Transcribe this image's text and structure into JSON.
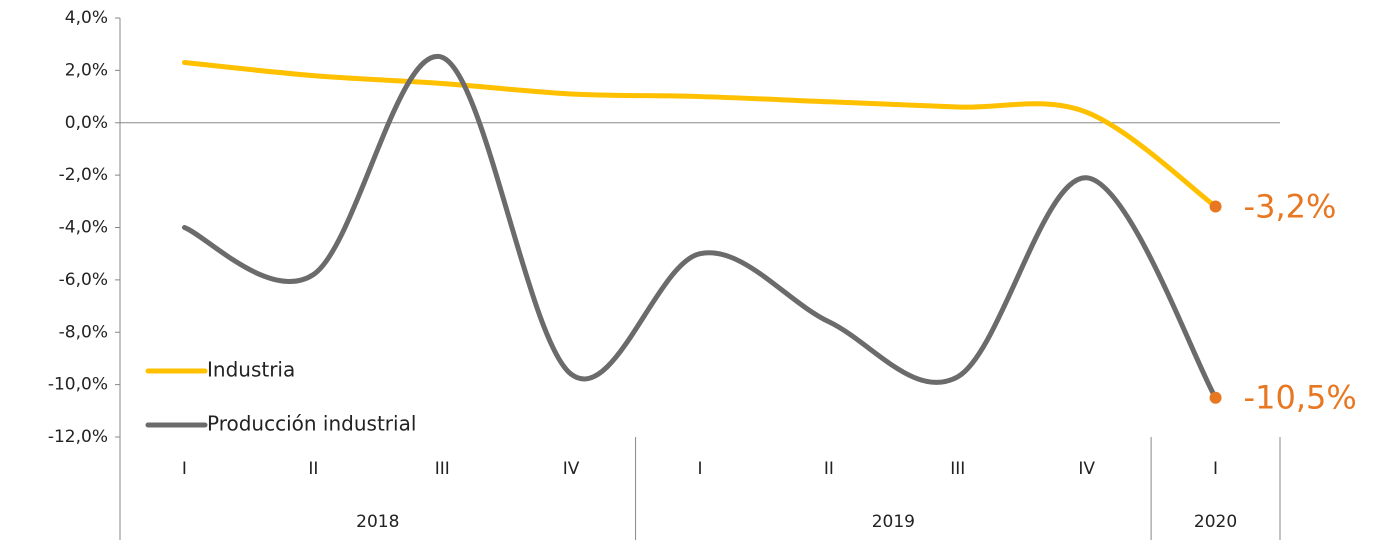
{
  "chart_data": {
    "type": "line",
    "categories": [
      "I",
      "II",
      "III",
      "IV",
      "I",
      "II",
      "III",
      "IV",
      "I"
    ],
    "category_groups": [
      {
        "name": "2018",
        "count": 4
      },
      {
        "name": "2019",
        "count": 4
      },
      {
        "name": "2020",
        "count": 1
      }
    ],
    "series": [
      {
        "name": "Industria",
        "color": "#ffc000",
        "values": [
          2.3,
          1.8,
          1.5,
          1.1,
          1.0,
          0.8,
          0.6,
          0.4,
          -3.2
        ],
        "value_labels": [
          null,
          null,
          null,
          null,
          null,
          null,
          null,
          null,
          "-3,2%"
        ]
      },
      {
        "name": "Producción industrial",
        "color": "#6b6b6b",
        "values": [
          -4.0,
          -5.8,
          2.5,
          -9.6,
          -5.0,
          -7.6,
          -9.7,
          -2.1,
          -10.5
        ],
        "value_labels": [
          null,
          null,
          null,
          null,
          null,
          null,
          null,
          null,
          "-10,5%"
        ]
      }
    ],
    "marker_color": "#e87722",
    "ylim": [
      -12,
      4
    ],
    "yticks": [
      {
        "value": -12,
        "label": "-12,0%"
      },
      {
        "value": -10,
        "label": "-10,0%"
      },
      {
        "value": -8,
        "label": "-8,0%"
      },
      {
        "value": -6,
        "label": "-6,0%"
      },
      {
        "value": -4,
        "label": "-4,0%"
      },
      {
        "value": -2,
        "label": "-2,0%"
      },
      {
        "value": 0,
        "label": "0,0%"
      },
      {
        "value": 2,
        "label": "2,0%"
      },
      {
        "value": 4,
        "label": "4,0%"
      }
    ],
    "legend": "lower left"
  }
}
